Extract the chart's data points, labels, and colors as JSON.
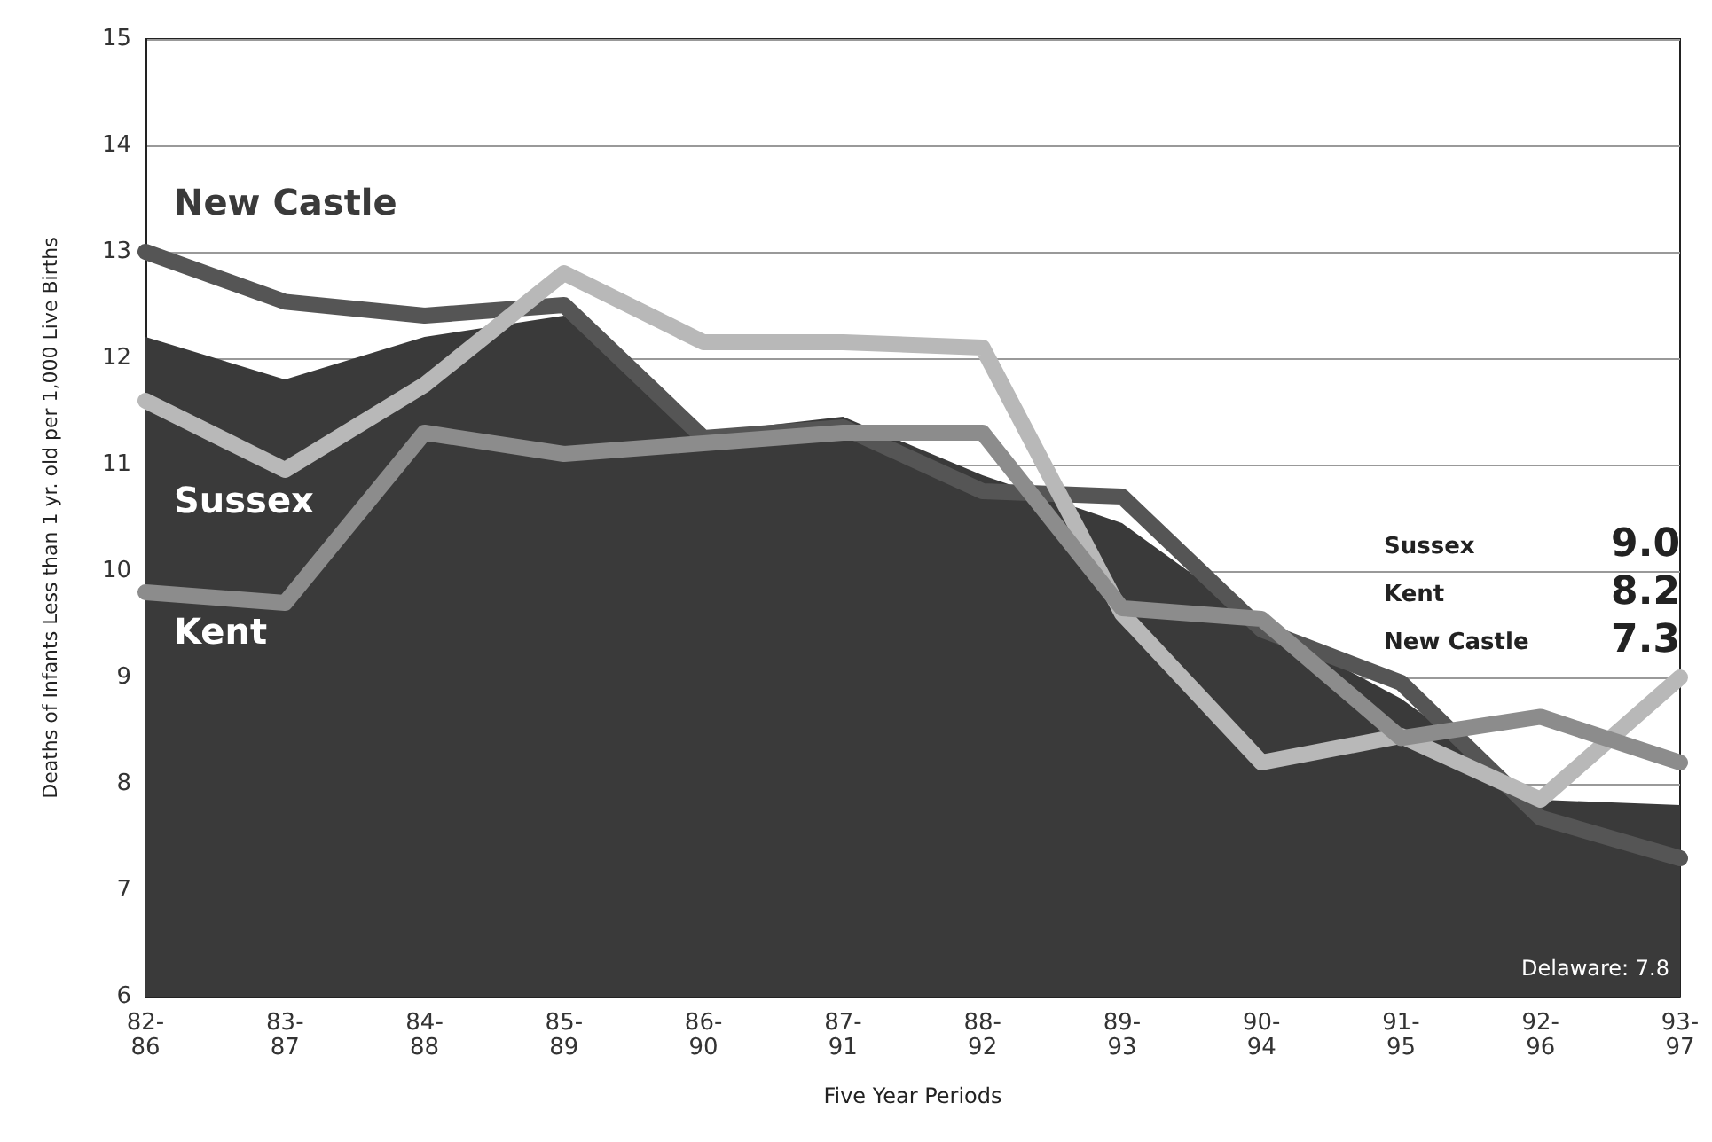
{
  "chart_data": {
    "type": "line",
    "xlabel": "Five Year Periods",
    "ylabel": "Deaths of Infants Less than 1 yr. old per 1,000 Live Births",
    "categories": [
      "82-\n86",
      "83-\n87",
      "84-\n88",
      "85-\n89",
      "86-\n90",
      "87-\n91",
      "88-\n92",
      "89-\n93",
      "90-\n94",
      "91-\n95",
      "92-\n96",
      "93-\n97"
    ],
    "series": [
      {
        "type": "area",
        "color": "#3a3a3a",
        "values": [
          12.2,
          11.8,
          12.2,
          12.4,
          11.3,
          11.45,
          10.9,
          10.45,
          9.5,
          8.8,
          7.85,
          7.8
        ]
      },
      {
        "name": "New Castle",
        "color": "#555555",
        "values": [
          13.0,
          12.53,
          12.4,
          12.5,
          11.25,
          11.35,
          10.75,
          10.7,
          9.45,
          8.95,
          7.68,
          7.3
        ]
      },
      {
        "name": "Sussex",
        "color": "#b8b8b8",
        "values": [
          11.6,
          10.95,
          11.75,
          12.8,
          12.15,
          12.15,
          12.1,
          9.6,
          8.2,
          8.45,
          7.85,
          9.0
        ]
      },
      {
        "name": "Kent",
        "color": "#8c8c8c",
        "values": [
          9.8,
          9.7,
          11.3,
          11.1,
          11.2,
          11.3,
          11.3,
          9.65,
          9.55,
          8.43,
          8.63,
          8.2
        ]
      }
    ],
    "ylim": [
      6,
      15
    ],
    "yticks": [
      6,
      7,
      8,
      9,
      10,
      11,
      12,
      13,
      14,
      15
    ],
    "grid": "y",
    "legend": false,
    "marker": "none",
    "line_style": "solid",
    "annotations": [
      "Sussex",
      "9.0",
      "Kent",
      "8.2",
      "New Castle",
      "7.3",
      "Delaware: 7.8"
    ]
  }
}
